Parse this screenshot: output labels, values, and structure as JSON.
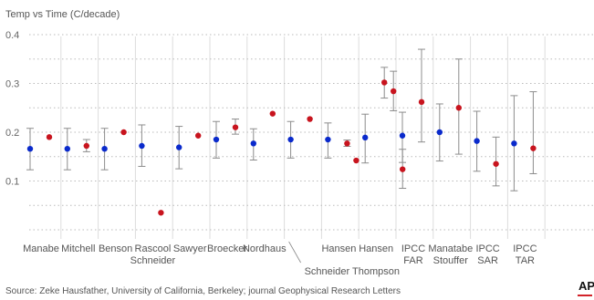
{
  "chart_data": {
    "type": "scatter",
    "title": "Temp vs Time (C/decade)",
    "ylim": [
      0,
      0.4
    ],
    "yticks": [
      {
        "value": 0.4,
        "label": "0.4"
      },
      {
        "value": 0.3,
        "label": "0.3"
      },
      {
        "value": 0.2,
        "label": "0.2"
      },
      {
        "value": 0.1,
        "label": "0.1"
      }
    ],
    "grid": true,
    "legend": "none",
    "colors": {
      "observed": "#0a2acc",
      "projected": "#c8141e",
      "errorbar": "#8c8c8c",
      "grid": "#bbbbbb",
      "divider": "#dddddd"
    },
    "categories": [
      {
        "label": [
          "Manabe"
        ],
        "labelAt": 0
      },
      {
        "label": [
          "Mitchell"
        ],
        "labelAt": 1
      },
      {
        "label": [
          "Benson"
        ],
        "labelAt": 2
      },
      {
        "label": [
          "Rascool",
          "Schneider"
        ],
        "labelAt": 3
      },
      {
        "label": [
          "Sawyer"
        ],
        "labelAt": 4
      },
      {
        "label": [
          "Broecker"
        ],
        "labelAt": 5
      },
      {
        "label": [
          "Nordhaus"
        ],
        "labelAt": 6
      },
      {
        "label": [
          "Schneider Thompson"
        ],
        "labelAt": 7,
        "lower": true
      },
      {
        "label": [
          "Hansen"
        ],
        "labelAt": 8
      },
      {
        "label": [
          "Hansen"
        ],
        "labelAt": 9
      },
      {
        "label": [
          "IPCC",
          "FAR"
        ],
        "labelAt": 10
      },
      {
        "label": [
          "Manatabe",
          "Stouffer"
        ],
        "labelAt": 11
      },
      {
        "label": [
          "IPCC",
          "SAR"
        ],
        "labelAt": 12
      },
      {
        "label": [
          "IPCC",
          "TAR"
        ],
        "labelAt": 13
      }
    ],
    "series": [
      {
        "kind": "observed",
        "points": [
          {
            "cat": 0,
            "y": 0.166,
            "lo": 0.123,
            "hi": 0.208
          },
          {
            "cat": 1,
            "y": 0.166,
            "lo": 0.123,
            "hi": 0.208
          },
          {
            "cat": 2,
            "y": 0.166,
            "lo": 0.123,
            "hi": 0.208
          },
          {
            "cat": 3,
            "y": 0.172,
            "lo": 0.13,
            "hi": 0.215
          },
          {
            "cat": 4,
            "y": 0.169,
            "lo": 0.125,
            "hi": 0.212
          },
          {
            "cat": 5,
            "y": 0.185,
            "lo": 0.147,
            "hi": 0.222
          },
          {
            "cat": 6,
            "y": 0.177,
            "lo": 0.143,
            "hi": 0.207
          },
          {
            "cat": 7,
            "y": 0.185,
            "lo": 0.147,
            "hi": 0.222
          },
          {
            "cat": 8,
            "y": 0.185,
            "lo": 0.147,
            "hi": 0.219
          },
          {
            "cat": 9,
            "y": 0.189,
            "lo": 0.137,
            "hi": 0.237
          },
          {
            "cat": 10,
            "y": 0.193,
            "lo": 0.138,
            "hi": 0.241
          },
          {
            "cat": 11,
            "y": 0.2,
            "lo": 0.141,
            "hi": 0.258
          },
          {
            "cat": 12,
            "y": 0.182,
            "lo": 0.12,
            "hi": 0.243
          },
          {
            "cat": 13,
            "y": 0.177,
            "lo": 0.08,
            "hi": 0.275
          }
        ]
      },
      {
        "kind": "projected",
        "points": [
          {
            "cat": 0,
            "y": 0.19
          },
          {
            "cat": 1,
            "y": 0.172,
            "lo": 0.16,
            "hi": 0.185
          },
          {
            "cat": 2,
            "y": 0.2
          },
          {
            "cat": 3,
            "y": 0.035
          },
          {
            "cat": 4,
            "y": 0.193
          },
          {
            "cat": 5,
            "y": 0.21,
            "lo": 0.196,
            "hi": 0.227
          },
          {
            "cat": 6,
            "y": 0.238
          },
          {
            "cat": 7,
            "y": 0.227
          },
          {
            "cat": 8,
            "y": 0.177,
            "lo": 0.171,
            "hi": 0.184
          },
          {
            "cat": 8,
            "y": 0.142,
            "offset": 0.5
          },
          {
            "cat": 9,
            "y": 0.302,
            "lo": 0.27,
            "hi": 0.333
          },
          {
            "cat": 9,
            "y": 0.284,
            "lo": 0.244,
            "hi": 0.325,
            "offset": 0.5
          },
          {
            "cat": 9,
            "y": 0.124,
            "lo": 0.085,
            "hi": 0.165,
            "offset": 1.0
          },
          {
            "cat": 10,
            "y": 0.262,
            "lo": 0.18,
            "hi": 0.37
          },
          {
            "cat": 11,
            "y": 0.25,
            "lo": 0.155,
            "hi": 0.35
          },
          {
            "cat": 12,
            "y": 0.135,
            "lo": 0.09,
            "hi": 0.19
          },
          {
            "cat": 13,
            "y": 0.167,
            "lo": 0.115,
            "hi": 0.283
          }
        ]
      }
    ]
  },
  "source": "Source: Zeke Hausfather, University of California, Berkeley;  journal Geophysical Research Letters",
  "logo": "AP"
}
